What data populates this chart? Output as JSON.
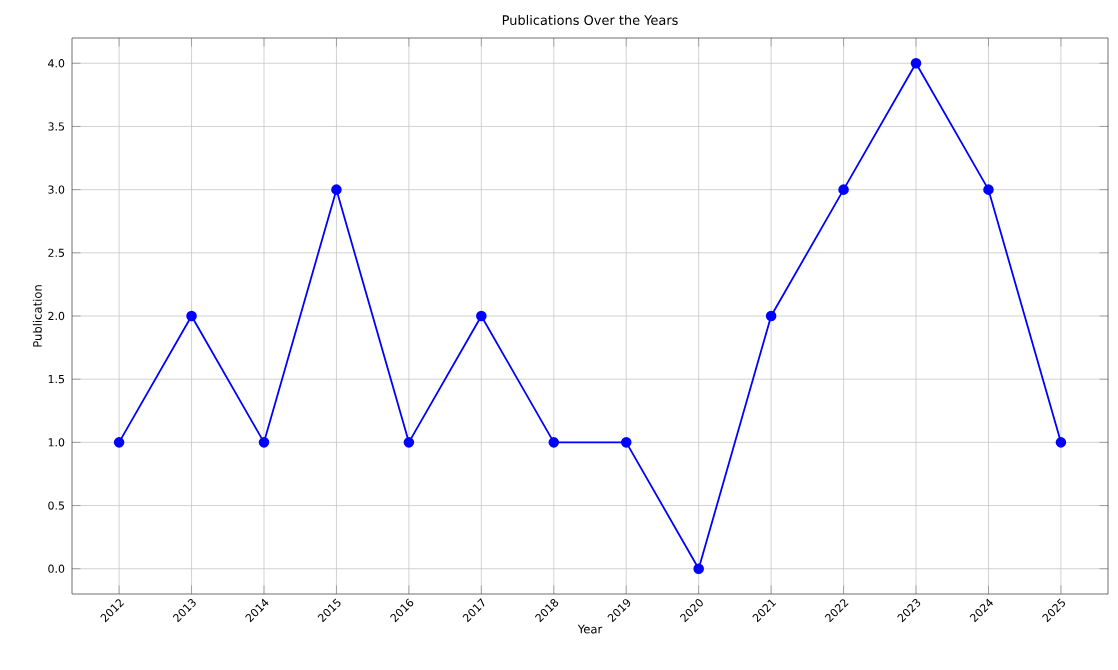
{
  "chart_data": {
    "type": "line",
    "title": "Publications Over the Years",
    "xlabel": "Year",
    "ylabel": "Publication",
    "x": [
      2012,
      2013,
      2014,
      2015,
      2016,
      2017,
      2018,
      2019,
      2020,
      2021,
      2022,
      2023,
      2024,
      2025
    ],
    "series": [
      {
        "color": "#0000ff",
        "values": [
          1,
          2,
          1,
          3,
          1,
          2,
          1,
          1,
          0,
          2,
          3,
          4,
          3,
          1
        ]
      }
    ],
    "xlim": [
      2011.35,
      2025.65
    ],
    "ylim": [
      -0.2,
      4.2
    ],
    "xticks": [
      2012,
      2013,
      2014,
      2015,
      2016,
      2017,
      2018,
      2019,
      2020,
      2021,
      2022,
      2023,
      2024,
      2025
    ],
    "yticks": [
      {
        "value": 0,
        "label": "0.0"
      },
      {
        "value": 0.5,
        "label": "0.5"
      },
      {
        "value": 1,
        "label": "1.0"
      },
      {
        "value": 1.5,
        "label": "1.5"
      },
      {
        "value": 2,
        "label": "2.0"
      },
      {
        "value": 2.5,
        "label": "2.5"
      },
      {
        "value": 3,
        "label": "3.0"
      },
      {
        "value": 3.5,
        "label": "3.5"
      },
      {
        "value": 4,
        "label": "4.0"
      }
    ],
    "grid": true,
    "marker": "circle",
    "line_style": "solid"
  }
}
